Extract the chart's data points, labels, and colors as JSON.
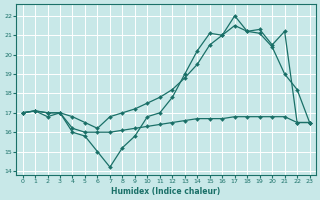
{
  "xlabel": "Humidex (Indice chaleur)",
  "bg_color": "#c8e8e8",
  "grid_color": "#ffffff",
  "line_color": "#1a7068",
  "xlim": [
    -0.5,
    23.5
  ],
  "ylim": [
    13.8,
    22.6
  ],
  "xticks": [
    0,
    1,
    2,
    3,
    4,
    5,
    6,
    7,
    8,
    9,
    10,
    11,
    12,
    13,
    14,
    15,
    16,
    17,
    18,
    19,
    20,
    21,
    22,
    23
  ],
  "yticks": [
    14,
    15,
    16,
    17,
    18,
    19,
    20,
    21,
    22
  ],
  "line1_x": [
    0,
    1,
    2,
    3,
    4,
    5,
    6,
    7,
    8,
    9,
    10,
    11,
    12,
    13,
    14,
    15,
    16,
    17,
    18,
    19,
    20,
    21,
    22,
    23
  ],
  "line1_y": [
    17.0,
    17.1,
    16.8,
    17.0,
    16.0,
    15.8,
    15.0,
    14.2,
    15.2,
    15.8,
    16.8,
    17.0,
    17.8,
    19.0,
    20.2,
    21.1,
    21.0,
    22.0,
    21.2,
    21.1,
    20.4,
    19.0,
    18.2,
    16.5
  ],
  "line2_x": [
    0,
    1,
    2,
    3,
    4,
    5,
    6,
    7,
    8,
    9,
    10,
    11,
    12,
    13,
    14,
    15,
    16,
    17,
    18,
    19,
    20,
    21,
    22,
    23
  ],
  "line2_y": [
    17.0,
    17.1,
    17.0,
    17.0,
    16.8,
    16.5,
    16.2,
    16.8,
    17.0,
    17.2,
    17.5,
    17.8,
    18.2,
    18.8,
    19.5,
    20.5,
    21.0,
    21.5,
    21.2,
    21.3,
    20.5,
    21.2,
    16.5,
    16.5
  ],
  "line3_x": [
    0,
    1,
    2,
    3,
    4,
    5,
    6,
    7,
    8,
    9,
    10,
    11,
    12,
    13,
    14,
    15,
    16,
    17,
    18,
    19,
    20,
    21,
    22,
    23
  ],
  "line3_y": [
    17.0,
    17.1,
    17.0,
    17.0,
    16.2,
    16.0,
    16.0,
    16.0,
    16.1,
    16.2,
    16.3,
    16.4,
    16.5,
    16.6,
    16.7,
    16.7,
    16.7,
    16.8,
    16.8,
    16.8,
    16.8,
    16.8,
    16.5,
    16.5
  ]
}
